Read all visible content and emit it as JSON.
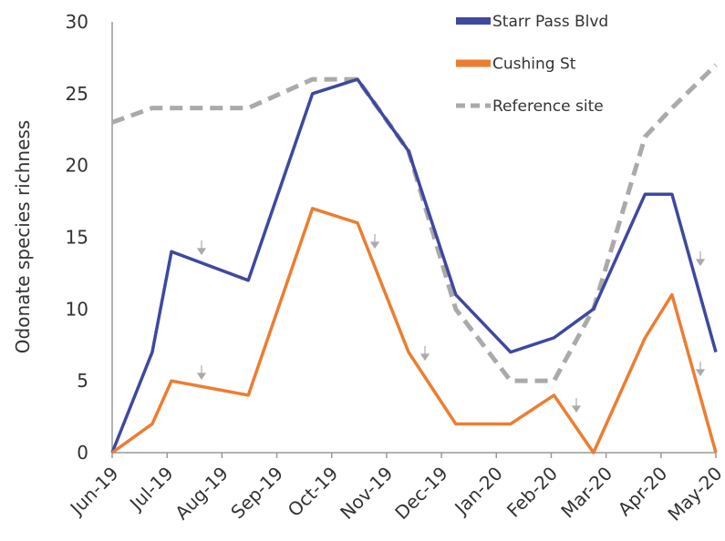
{
  "chart_data": {
    "type": "line",
    "y_label": "Odonate species richness",
    "xlim": [
      0,
      11
    ],
    "xticks": [
      {
        "value": 0,
        "label": "Jun-19"
      },
      {
        "value": 1,
        "label": "Jul-19"
      },
      {
        "value": 2,
        "label": "Aug-19"
      },
      {
        "value": 3,
        "label": "Sep-19"
      },
      {
        "value": 4,
        "label": "Oct-19"
      },
      {
        "value": 5,
        "label": "Nov-19"
      },
      {
        "value": 6,
        "label": "Dec-19"
      },
      {
        "value": 7,
        "label": "Jan-20"
      },
      {
        "value": 8,
        "label": "Feb-20"
      },
      {
        "value": 9,
        "label": "Mar-20"
      },
      {
        "value": 10,
        "label": "Apr-20"
      },
      {
        "value": 11,
        "label": "May-20"
      }
    ],
    "ylim": [
      0,
      30
    ],
    "yticks": [
      0,
      5,
      10,
      15,
      20,
      25,
      30
    ],
    "x": [
      0,
      0.73,
      1.08,
      2.48,
      3.65,
      4.47,
      5.4,
      6.26,
      7.26,
      8.05,
      8.77,
      9.71,
      10.2,
      11
    ],
    "series": [
      {
        "name": "Starr Pass Blvd",
        "color": "#3f48a0",
        "dashed": false,
        "values": [
          0,
          7,
          14,
          12,
          25,
          26,
          21,
          11,
          7,
          8,
          10,
          18,
          18,
          7
        ]
      },
      {
        "name": "Cushing St",
        "color": "#ed7d31",
        "dashed": false,
        "values": [
          0,
          2,
          5,
          4,
          17,
          16,
          7,
          2,
          2,
          4,
          0,
          8,
          11,
          0
        ]
      },
      {
        "name": "Reference site",
        "color": "#aaaaaa",
        "dashed": true,
        "values": [
          23,
          24,
          24,
          24,
          26,
          26,
          21,
          10,
          5,
          5,
          10,
          22,
          24,
          27
        ]
      }
    ]
  }
}
